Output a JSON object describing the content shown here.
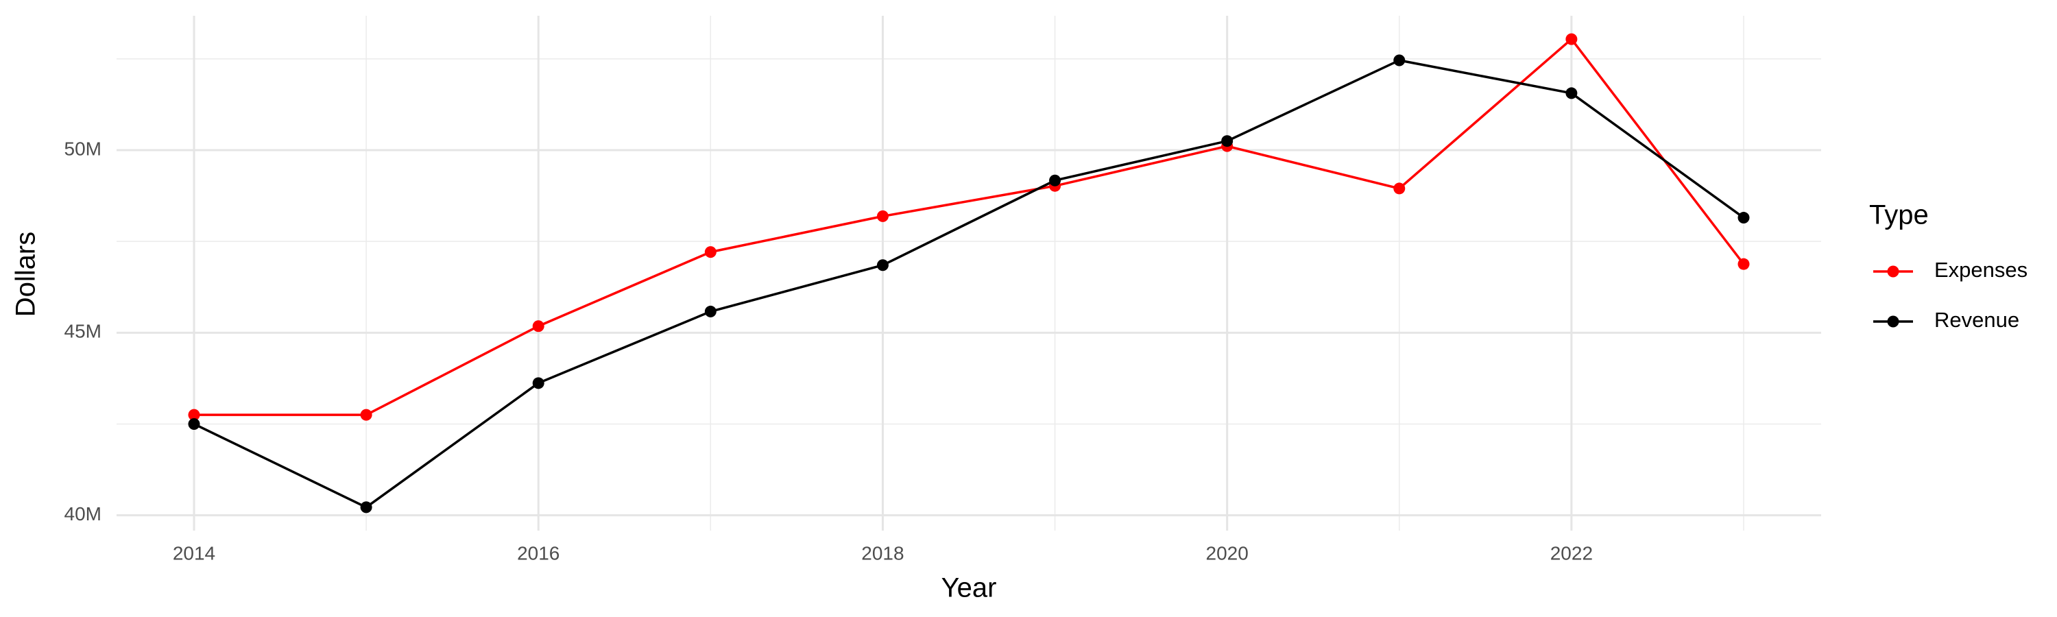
{
  "chart_data": {
    "type": "line",
    "x_label": "Year",
    "y_label": "Dollars",
    "legend_title": "Type",
    "legend_position": "right",
    "grid": true,
    "x": [
      2014,
      2015,
      2016,
      2017,
      2018,
      2019,
      2020,
      2021,
      2022,
      2023
    ],
    "series": [
      {
        "name": "Expenses",
        "color": "#ff0000",
        "values": [
          42750000,
          42750000,
          45180000,
          47210000,
          48190000,
          49020000,
          50110000,
          48950000,
          53040000,
          46880000
        ]
      },
      {
        "name": "Revenue",
        "color": "#000000",
        "values": [
          42500000,
          40220000,
          43620000,
          45580000,
          46850000,
          49170000,
          50250000,
          52460000,
          51560000,
          48150000
        ]
      }
    ],
    "xlim": [
      2013.55,
      2023.45
    ],
    "xticks": [
      2014,
      2016,
      2018,
      2020,
      2022
    ],
    "x_minor_grid": [
      2015,
      2017,
      2019,
      2021,
      2023
    ],
    "ylim": [
      39580000,
      53680000
    ],
    "yticks": [
      {
        "value": 40000000,
        "label": "40M"
      },
      {
        "value": 45000000,
        "label": "45M"
      },
      {
        "value": 50000000,
        "label": "50M"
      }
    ],
    "y_minor_grid": [
      42500000,
      47500000,
      52500000
    ]
  }
}
